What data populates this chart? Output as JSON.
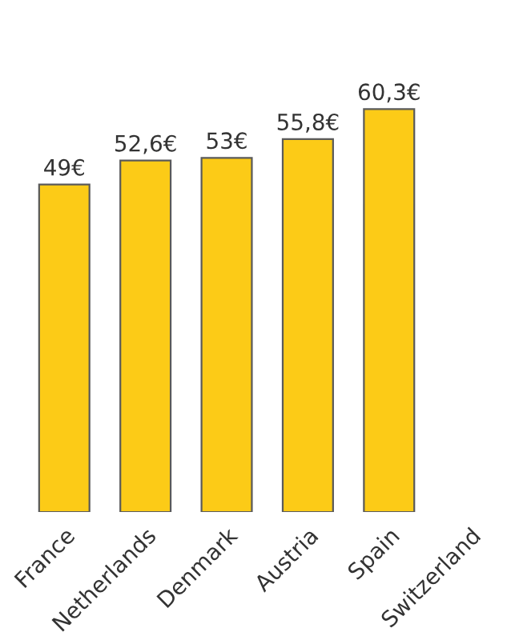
{
  "chart_data": {
    "type": "bar",
    "categories": [
      "France",
      "Netherlands",
      "Denmark",
      "Austria",
      "Spain",
      "Switzerland"
    ],
    "values": [
      49,
      52.6,
      53,
      55.8,
      60.3,
      null
    ],
    "value_labels": [
      "49€",
      "52,6€",
      "53€",
      "55,8€",
      "60,3€",
      null
    ],
    "color": "#fccb17",
    "grid": false,
    "legend": false
  }
}
